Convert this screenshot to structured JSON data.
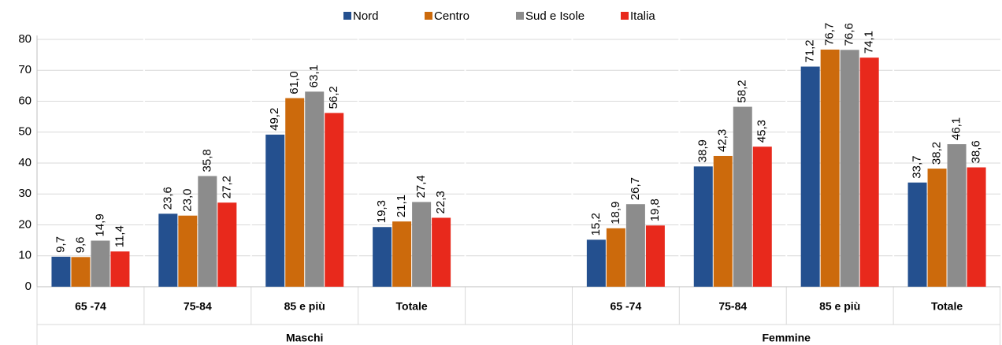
{
  "chart_data": {
    "type": "bar",
    "categories": [
      "65 -74",
      "75-84",
      "85 e più",
      "Totale",
      null,
      "65 -74",
      "75-84",
      "85 e più",
      "Totale"
    ],
    "groups": [
      "Maschi",
      "Femmine"
    ],
    "series": [
      {
        "name": "Nord",
        "color": "#24508f",
        "values": [
          9.7,
          23.6,
          49.2,
          19.3,
          null,
          15.2,
          38.9,
          71.2,
          33.7
        ],
        "value_labels": [
          "9,7",
          "23,6",
          "49,2",
          "19,3",
          null,
          "15,2",
          "38,9",
          "71,2",
          "33,7"
        ]
      },
      {
        "name": "Centro",
        "color": "#cc6a0c",
        "values": [
          9.6,
          23.0,
          61.0,
          21.1,
          null,
          18.9,
          42.3,
          76.7,
          38.2
        ],
        "value_labels": [
          "9,6",
          "23,0",
          "61,0",
          "21,1",
          null,
          "18,9",
          "42,3",
          "76,7",
          "38,2"
        ]
      },
      {
        "name": "Sud e Isole",
        "color": "#8c8c8c",
        "values": [
          14.9,
          35.8,
          63.1,
          27.4,
          null,
          26.7,
          58.2,
          76.6,
          46.1
        ],
        "value_labels": [
          "14,9",
          "35,8",
          "63,1",
          "27,4",
          null,
          "26,7",
          "58,2",
          "76,6",
          "46,1"
        ]
      },
      {
        "name": "Italia",
        "color": "#e8291c",
        "values": [
          11.4,
          27.2,
          56.2,
          22.3,
          null,
          19.8,
          45.3,
          74.1,
          38.6
        ],
        "value_labels": [
          "11,4",
          "27,2",
          "56,2",
          "22,3",
          null,
          "19,8",
          "45,3",
          "74,1",
          "38,6"
        ]
      }
    ],
    "ylim": [
      0,
      80
    ],
    "yticks": [
      0,
      10,
      20,
      30,
      40,
      50,
      60,
      70,
      80
    ],
    "grid": true,
    "legend": "top"
  }
}
